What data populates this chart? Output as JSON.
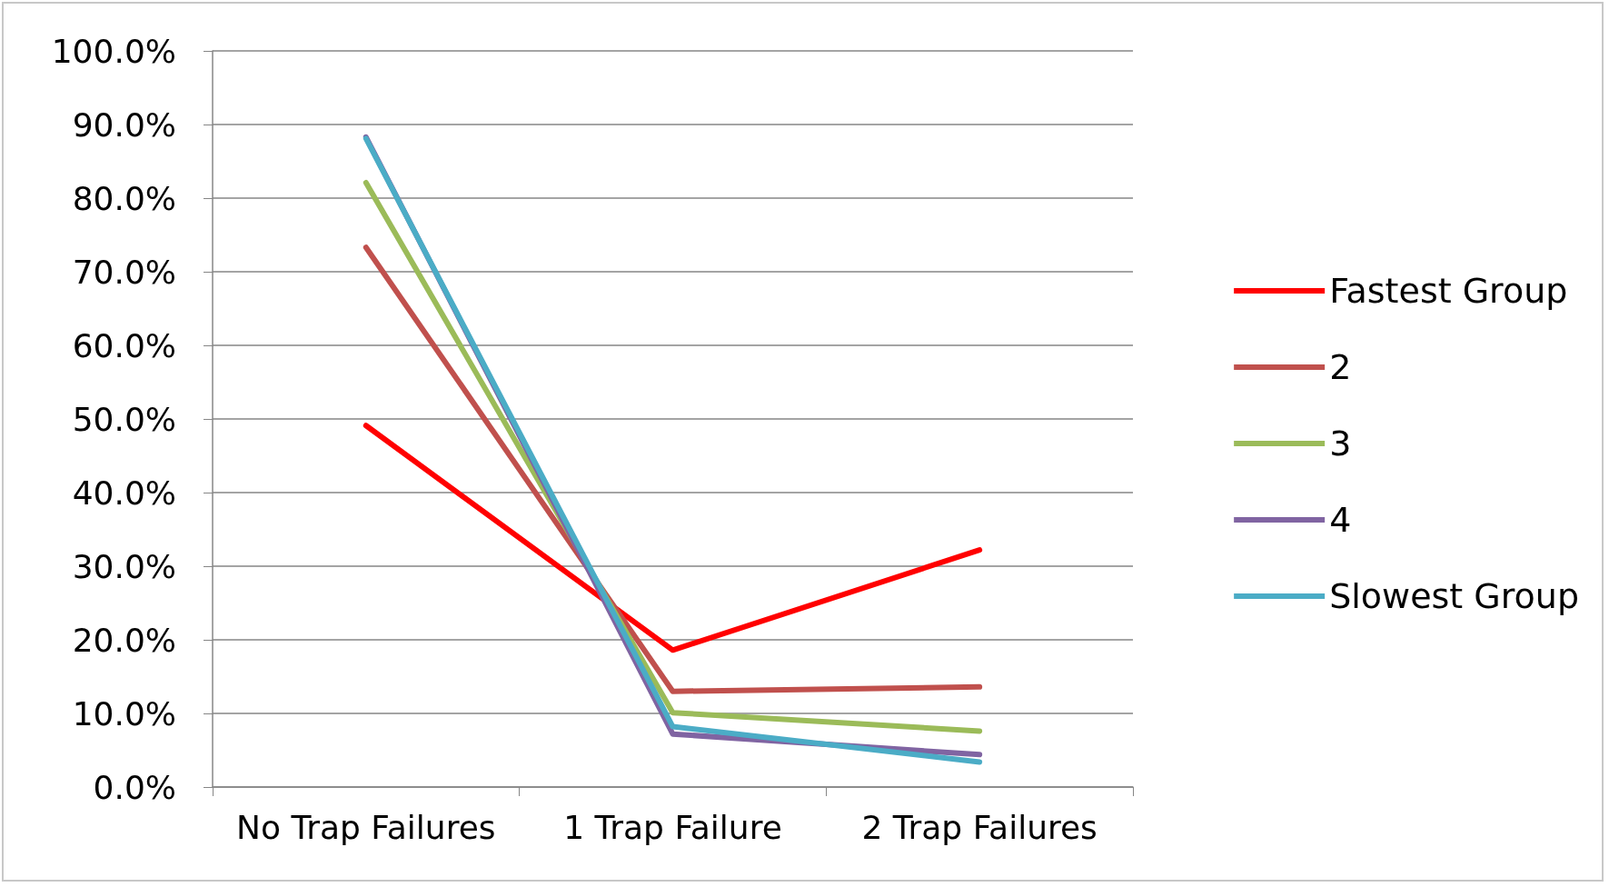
{
  "chart_data": {
    "type": "line",
    "categories": [
      "No Trap Failures",
      "1 Trap Failure",
      "2 Trap Failures"
    ],
    "series": [
      {
        "name": "Fastest Group",
        "color": "#ff0000",
        "values": [
          49.1,
          18.6,
          32.2
        ]
      },
      {
        "name": "2",
        "color": "#c0504d",
        "values": [
          73.3,
          13.0,
          13.6
        ]
      },
      {
        "name": "3",
        "color": "#9bbb59",
        "values": [
          82.1,
          10.1,
          7.6
        ]
      },
      {
        "name": "4",
        "color": "#8064a2",
        "values": [
          88.3,
          7.2,
          4.4
        ]
      },
      {
        "name": "Slowest Group",
        "color": "#4bacc6",
        "values": [
          88.1,
          8.2,
          3.4
        ]
      }
    ],
    "ylim": [
      0,
      100
    ],
    "yticks": [
      {
        "value": 0,
        "label": "0.0%"
      },
      {
        "value": 10,
        "label": "10.0%"
      },
      {
        "value": 20,
        "label": "20.0%"
      },
      {
        "value": 30,
        "label": "30.0%"
      },
      {
        "value": 40,
        "label": "40.0%"
      },
      {
        "value": 50,
        "label": "50.0%"
      },
      {
        "value": 60,
        "label": "60.0%"
      },
      {
        "value": 70,
        "label": "70.0%"
      },
      {
        "value": 80,
        "label": "80.0%"
      },
      {
        "value": 90,
        "label": "90.0%"
      },
      {
        "value": 100,
        "label": "100.0%"
      }
    ],
    "grid": "y",
    "legend": "right",
    "marker": "none",
    "line_style": "solid"
  }
}
